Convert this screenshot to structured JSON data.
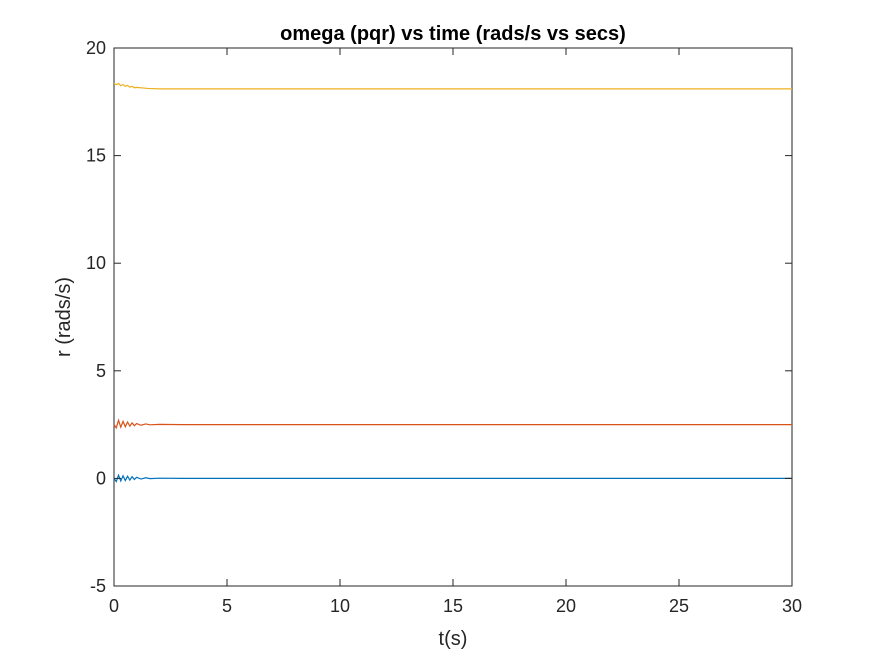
{
  "chart_data": {
    "type": "line",
    "title": "omega (pqr) vs time (rads/s vs secs)",
    "xlabel": "t(s)",
    "ylabel": "r (rads/s)",
    "xlim": [
      0,
      30
    ],
    "ylim": [
      -5,
      20
    ],
    "xticks": [
      0,
      5,
      10,
      15,
      20,
      25,
      30
    ],
    "yticks": [
      -5,
      0,
      5,
      10,
      15,
      20
    ],
    "grid": false,
    "legend": "none",
    "series": [
      {
        "color": "#0072BD",
        "x": [
          0,
          0.1,
          0.2,
          0.3,
          0.4,
          0.5,
          0.6,
          0.7,
          0.8,
          0.9,
          1.0,
          1.2,
          1.4,
          1.6,
          2.0,
          3.0,
          4.0,
          6.0,
          10.0,
          15.0,
          20.0,
          25.0,
          30.0
        ],
        "y": [
          0.0,
          -0.15,
          0.15,
          -0.12,
          0.12,
          -0.1,
          0.1,
          -0.08,
          0.08,
          -0.05,
          0.05,
          -0.03,
          0.03,
          -0.01,
          0.01,
          0.0,
          0.0,
          0.0,
          0.0,
          0.0,
          0.0,
          0.0,
          0.0
        ]
      },
      {
        "color": "#D95319",
        "x": [
          0,
          0.1,
          0.2,
          0.3,
          0.4,
          0.5,
          0.6,
          0.7,
          0.8,
          0.9,
          1.0,
          1.2,
          1.4,
          1.6,
          2.0,
          3.0,
          4.0,
          6.0,
          10.0,
          15.0,
          20.0,
          25.0,
          30.0
        ],
        "y": [
          2.5,
          2.35,
          2.7,
          2.38,
          2.65,
          2.4,
          2.62,
          2.43,
          2.58,
          2.45,
          2.55,
          2.47,
          2.53,
          2.49,
          2.51,
          2.5,
          2.5,
          2.5,
          2.5,
          2.5,
          2.5,
          2.5,
          2.5
        ]
      },
      {
        "color": "#EDB120",
        "x": [
          0,
          0.1,
          0.2,
          0.3,
          0.4,
          0.5,
          0.6,
          0.7,
          0.8,
          0.9,
          1.0,
          1.5,
          2.0,
          3.0,
          5.0,
          10.0,
          15.0,
          20.0,
          25.0,
          30.0
        ],
        "y": [
          18.35,
          18.3,
          18.35,
          18.25,
          18.3,
          18.22,
          18.26,
          18.18,
          18.22,
          18.15,
          18.17,
          18.12,
          18.1,
          18.1,
          18.1,
          18.1,
          18.1,
          18.1,
          18.1,
          18.1
        ]
      }
    ]
  }
}
